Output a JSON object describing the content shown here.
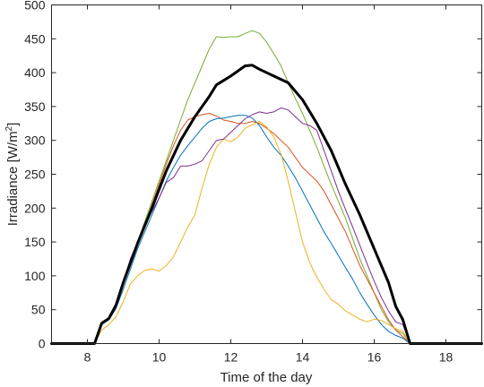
{
  "chart_data": {
    "type": "line",
    "title": "",
    "xlabel": "Time of the day",
    "ylabel_main": "Irradiance [W/m",
    "ylabel_sup": "2",
    "ylabel_end": "]",
    "xlim": [
      7,
      19
    ],
    "ylim": [
      0,
      500
    ],
    "xticks": [
      8,
      10,
      12,
      14,
      16,
      18
    ],
    "yticks": [
      0,
      50,
      100,
      150,
      200,
      250,
      300,
      350,
      400,
      450,
      500
    ],
    "grid": false,
    "legend": false,
    "series": [
      {
        "color": "#77ac30",
        "width": 1,
        "x": [
          7,
          8.2,
          8.4,
          8.6,
          8.8,
          9.0,
          9.2,
          9.4,
          9.6,
          9.8,
          10.0,
          10.2,
          10.4,
          10.6,
          10.8,
          11.0,
          11.2,
          11.4,
          11.6,
          11.8,
          12.0,
          12.2,
          12.4,
          12.6,
          12.8,
          13.0,
          13.2,
          13.4,
          13.6,
          13.8,
          14.0,
          14.2,
          14.4,
          14.6,
          14.8,
          15.0,
          15.2,
          15.4,
          15.6,
          15.8,
          16.0,
          16.2,
          16.4,
          16.6,
          16.8,
          17.0,
          19
        ],
        "y": [
          0,
          0,
          28,
          35,
          55,
          90,
          120,
          150,
          180,
          210,
          240,
          270,
          300,
          330,
          360,
          385,
          410,
          435,
          453,
          452,
          453,
          453,
          458,
          462,
          458,
          445,
          428,
          410,
          385,
          362,
          340,
          315,
          290,
          262,
          235,
          210,
          185,
          155,
          125,
          100,
          75,
          50,
          32,
          20,
          15,
          0,
          0
        ]
      },
      {
        "color": "#d95319",
        "width": 1,
        "x": [
          7,
          8.2,
          8.4,
          8.6,
          8.8,
          9.0,
          9.2,
          9.4,
          9.6,
          9.8,
          10.0,
          10.2,
          10.4,
          10.6,
          10.8,
          11.0,
          11.2,
          11.4,
          11.6,
          11.8,
          12.0,
          12.2,
          12.4,
          12.6,
          12.8,
          13.0,
          13.2,
          13.4,
          13.6,
          13.8,
          14.0,
          14.2,
          14.4,
          14.6,
          14.8,
          15.0,
          15.2,
          15.4,
          15.6,
          15.8,
          16.0,
          16.2,
          16.4,
          16.6,
          16.8,
          17.0,
          19
        ],
        "y": [
          0,
          0,
          30,
          38,
          58,
          88,
          118,
          148,
          175,
          205,
          235,
          265,
          292,
          315,
          330,
          335,
          338,
          340,
          336,
          330,
          328,
          325,
          325,
          328,
          325,
          318,
          310,
          300,
          290,
          275,
          260,
          250,
          240,
          225,
          205,
          185,
          165,
          140,
          115,
          95,
          75,
          55,
          35,
          20,
          10,
          0,
          0
        ]
      },
      {
        "color": "#0072bd",
        "width": 1,
        "x": [
          7,
          8.2,
          8.4,
          8.6,
          8.8,
          9.0,
          9.2,
          9.4,
          9.6,
          9.8,
          10.0,
          10.2,
          10.4,
          10.6,
          10.8,
          11.0,
          11.2,
          11.4,
          11.6,
          11.8,
          12.0,
          12.2,
          12.4,
          12.6,
          12.8,
          13.0,
          13.2,
          13.4,
          13.6,
          13.8,
          14.0,
          14.2,
          14.4,
          14.6,
          14.8,
          15.0,
          15.2,
          15.4,
          15.6,
          15.8,
          16.0,
          16.2,
          16.4,
          16.6,
          16.8,
          17.0,
          19
        ],
        "y": [
          0,
          0,
          28,
          35,
          52,
          80,
          110,
          140,
          165,
          190,
          215,
          240,
          260,
          278,
          292,
          305,
          318,
          328,
          332,
          333,
          335,
          337,
          337,
          333,
          322,
          305,
          290,
          278,
          262,
          245,
          225,
          205,
          185,
          165,
          148,
          130,
          112,
          95,
          75,
          58,
          42,
          28,
          18,
          12,
          8,
          0,
          0
        ]
      },
      {
        "color": "#edb120",
        "width": 1,
        "x": [
          7,
          8.2,
          8.4,
          8.6,
          8.8,
          9.0,
          9.2,
          9.4,
          9.6,
          9.8,
          10.0,
          10.2,
          10.4,
          10.6,
          10.8,
          11.0,
          11.2,
          11.4,
          11.6,
          11.8,
          12.0,
          12.2,
          12.4,
          12.6,
          12.8,
          13.0,
          13.2,
          13.4,
          13.6,
          13.8,
          14.0,
          14.2,
          14.4,
          14.6,
          14.8,
          15.0,
          15.2,
          15.4,
          15.6,
          15.8,
          16.0,
          16.2,
          16.4,
          16.6,
          16.8,
          17.0,
          19
        ],
        "y": [
          0,
          0,
          20,
          28,
          40,
          62,
          88,
          100,
          108,
          110,
          107,
          115,
          128,
          150,
          172,
          190,
          230,
          265,
          290,
          302,
          298,
          305,
          318,
          323,
          328,
          320,
          305,
          280,
          240,
          195,
          150,
          120,
          98,
          80,
          65,
          58,
          48,
          42,
          36,
          32,
          36,
          34,
          28,
          22,
          18,
          0,
          0
        ]
      },
      {
        "color": "#7e2f8e",
        "width": 1,
        "x": [
          7,
          8.2,
          8.4,
          8.6,
          8.8,
          9.0,
          9.2,
          9.4,
          9.6,
          9.8,
          10.0,
          10.2,
          10.4,
          10.6,
          10.8,
          11.0,
          11.2,
          11.4,
          11.6,
          11.8,
          12.0,
          12.2,
          12.4,
          12.6,
          12.8,
          13.0,
          13.2,
          13.4,
          13.6,
          13.8,
          14.0,
          14.2,
          14.4,
          14.6,
          14.8,
          15.0,
          15.2,
          15.4,
          15.6,
          15.8,
          16.0,
          16.2,
          16.4,
          16.6,
          16.8,
          17.0,
          19
        ],
        "y": [
          0,
          0,
          30,
          38,
          58,
          92,
          125,
          150,
          175,
          195,
          215,
          238,
          245,
          262,
          262,
          265,
          270,
          285,
          300,
          302,
          312,
          322,
          332,
          338,
          342,
          340,
          342,
          348,
          345,
          335,
          325,
          322,
          315,
          285,
          255,
          225,
          198,
          172,
          145,
          118,
          92,
          68,
          48,
          32,
          28,
          0,
          0
        ]
      },
      {
        "color": "#000000",
        "width": 3,
        "x": [
          7,
          8.2,
          8.4,
          8.6,
          8.8,
          9.0,
          9.4,
          9.8,
          10.2,
          10.6,
          11.0,
          11.4,
          11.6,
          12.0,
          12.4,
          12.6,
          12.8,
          13.2,
          13.6,
          14.0,
          14.4,
          14.8,
          15.2,
          15.6,
          16.0,
          16.4,
          16.6,
          16.8,
          17.0,
          19
        ],
        "y": [
          0,
          0,
          30,
          37,
          57,
          90,
          148,
          200,
          255,
          300,
          335,
          365,
          382,
          395,
          410,
          411,
          405,
          395,
          385,
          360,
          325,
          285,
          235,
          190,
          140,
          90,
          55,
          35,
          0,
          0
        ]
      }
    ]
  }
}
